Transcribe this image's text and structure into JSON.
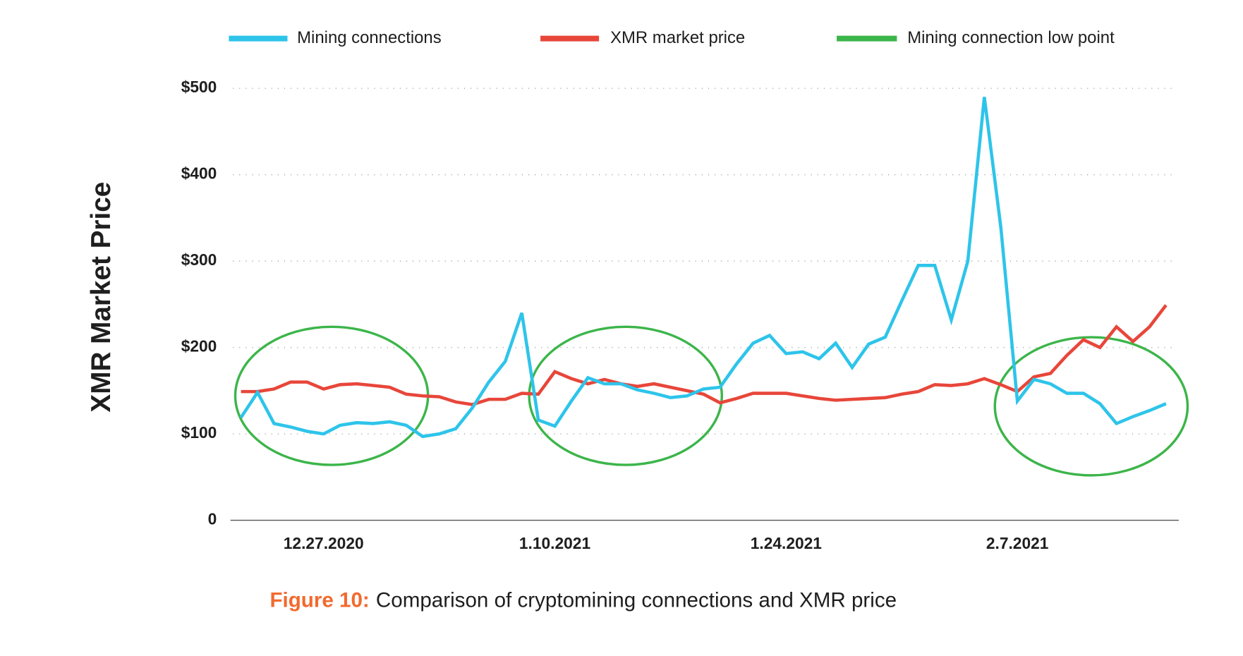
{
  "chart_data": {
    "type": "line",
    "y_label": "XMR Market Price",
    "caption_label": "Figure 10:",
    "caption_text": "Comparison of cryptomining connections and XMR price",
    "categories": [
      null,
      null,
      null,
      null,
      null,
      "12.27.2020",
      null,
      null,
      null,
      null,
      null,
      null,
      null,
      null,
      null,
      null,
      null,
      null,
      null,
      "1.10.2021",
      null,
      null,
      null,
      null,
      null,
      null,
      null,
      null,
      null,
      null,
      null,
      null,
      null,
      "1.24.2021",
      null,
      null,
      null,
      null,
      null,
      null,
      null,
      null,
      null,
      null,
      null,
      null,
      null,
      "2.7.2021",
      null,
      null,
      null,
      null,
      null,
      null,
      null,
      null,
      null
    ],
    "series": [
      {
        "name": "Mining connections",
        "color": "#2ec4ea",
        "values": [
          119,
          148,
          112,
          108,
          103,
          100,
          110,
          113,
          112,
          114,
          110,
          97,
          100,
          106,
          130,
          160,
          184,
          240,
          116,
          109,
          138,
          165,
          158,
          158,
          151,
          147,
          142,
          144,
          152,
          154,
          181,
          205,
          214,
          193,
          195,
          187,
          205,
          177,
          204,
          212,
          254,
          295,
          295,
          232,
          300,
          490,
          339,
          138,
          163,
          158,
          147,
          147,
          135,
          112,
          120,
          127,
          135
        ]
      },
      {
        "name": "XMR market price",
        "color": "#e8463a",
        "values": [
          149,
          149,
          152,
          160,
          160,
          152,
          157,
          158,
          156,
          154,
          146,
          144,
          143,
          137,
          134,
          140,
          140,
          147,
          146,
          172,
          164,
          158,
          163,
          158,
          155,
          158,
          154,
          150,
          146,
          136,
          141,
          147,
          147,
          147,
          144,
          141,
          139,
          140,
          141,
          142,
          146,
          149,
          157,
          156,
          158,
          164,
          157,
          149,
          166,
          170,
          191,
          209,
          200,
          224,
          207,
          224,
          249
        ]
      }
    ],
    "highlight": {
      "name": "Mining connection low point",
      "color": "#3cb54a"
    },
    "ylim": [
      0,
      500
    ],
    "yticks": [
      0,
      {
        "value": 100,
        "label": "$100"
      },
      {
        "value": 200,
        "label": "$200"
      },
      {
        "value": 300,
        "label": "$300"
      },
      {
        "value": 400,
        "label": "$400"
      },
      {
        "value": 500,
        "label": "$500"
      }
    ],
    "grid": true,
    "caption_color": "#f26a2e"
  }
}
